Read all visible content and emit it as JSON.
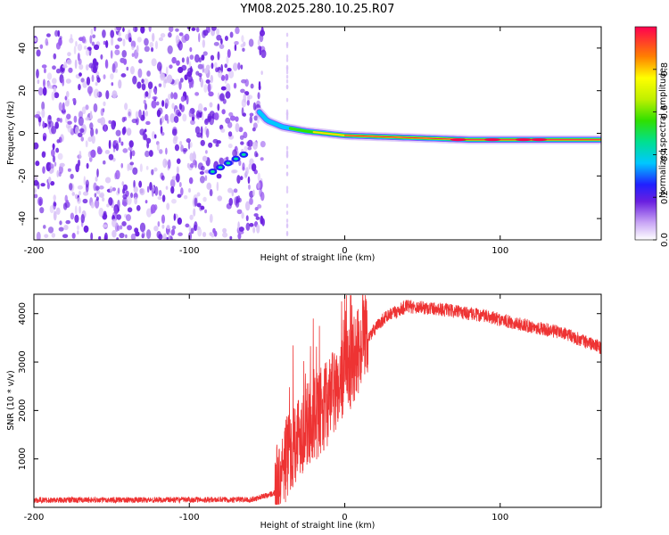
{
  "title": "YM08.2025.280.10.25.R07",
  "colors": {
    "snr_line": "#ee3333",
    "scatter_dark": "#6a1fe0",
    "scatter_light": "#d9c3f7"
  },
  "chart_data": [
    {
      "type": "heatmap",
      "name": "spectrogram",
      "xlabel": "Height of straight line (km)",
      "ylabel": "Frequency (Hz)",
      "xlim": [
        -200,
        165
      ],
      "ylim": [
        -50,
        50
      ],
      "xticks": [
        "-200",
        "-100",
        "0",
        "100"
      ],
      "xtick_values": [
        -200,
        -100,
        0,
        100
      ],
      "yticks": [
        "-40",
        "-20",
        "0",
        "20",
        "40"
      ],
      "ytick_values": [
        -40,
        -20,
        0,
        20,
        40
      ],
      "noise_region": [
        -200,
        -55
      ],
      "signal_track": [
        {
          "x": -85,
          "f": -18
        },
        {
          "x": -75,
          "f": -14
        },
        {
          "x": -65,
          "f": -10
        },
        {
          "x": -55,
          "f": 10
        },
        {
          "x": -50,
          "f": 6
        },
        {
          "x": -40,
          "f": 3
        },
        {
          "x": -25,
          "f": 1
        },
        {
          "x": 0,
          "f": -1
        },
        {
          "x": 40,
          "f": -2
        },
        {
          "x": 80,
          "f": -3
        },
        {
          "x": 120,
          "f": -3
        },
        {
          "x": 165,
          "f": -3
        }
      ],
      "colorbar": {
        "label": "Normalized spectral amplitude",
        "ticks": [
          "0.0",
          "0.2",
          "0.4",
          "0.6",
          "0.8"
        ],
        "tick_values": [
          0.0,
          0.2,
          0.4,
          0.6,
          0.8
        ],
        "range": [
          0,
          1
        ]
      }
    },
    {
      "type": "line",
      "name": "snr",
      "xlabel": "Height of straight line (km)",
      "ylabel": "SNR (10 * v/v)",
      "xlim": [
        -200,
        165
      ],
      "ylim": [
        0,
        4400
      ],
      "xticks": [
        "-200",
        "-100",
        "0",
        "100"
      ],
      "xtick_values": [
        -200,
        -100,
        0,
        100
      ],
      "yticks": [
        "1000",
        "2000",
        "3000",
        "4000"
      ],
      "ytick_values": [
        1000,
        2000,
        3000,
        4000
      ],
      "envelope": [
        {
          "x": -200,
          "y": 150
        },
        {
          "x": -60,
          "y": 160
        },
        {
          "x": -45,
          "y": 300
        },
        {
          "x": -38,
          "y": 1000
        },
        {
          "x": -30,
          "y": 1500
        },
        {
          "x": -20,
          "y": 1800
        },
        {
          "x": -10,
          "y": 2200
        },
        {
          "x": 0,
          "y": 2700
        },
        {
          "x": 10,
          "y": 3300
        },
        {
          "x": 25,
          "y": 3900
        },
        {
          "x": 40,
          "y": 4150
        },
        {
          "x": 60,
          "y": 4100
        },
        {
          "x": 90,
          "y": 3950
        },
        {
          "x": 110,
          "y": 3800
        },
        {
          "x": 140,
          "y": 3600
        },
        {
          "x": 165,
          "y": 3300
        }
      ]
    }
  ]
}
